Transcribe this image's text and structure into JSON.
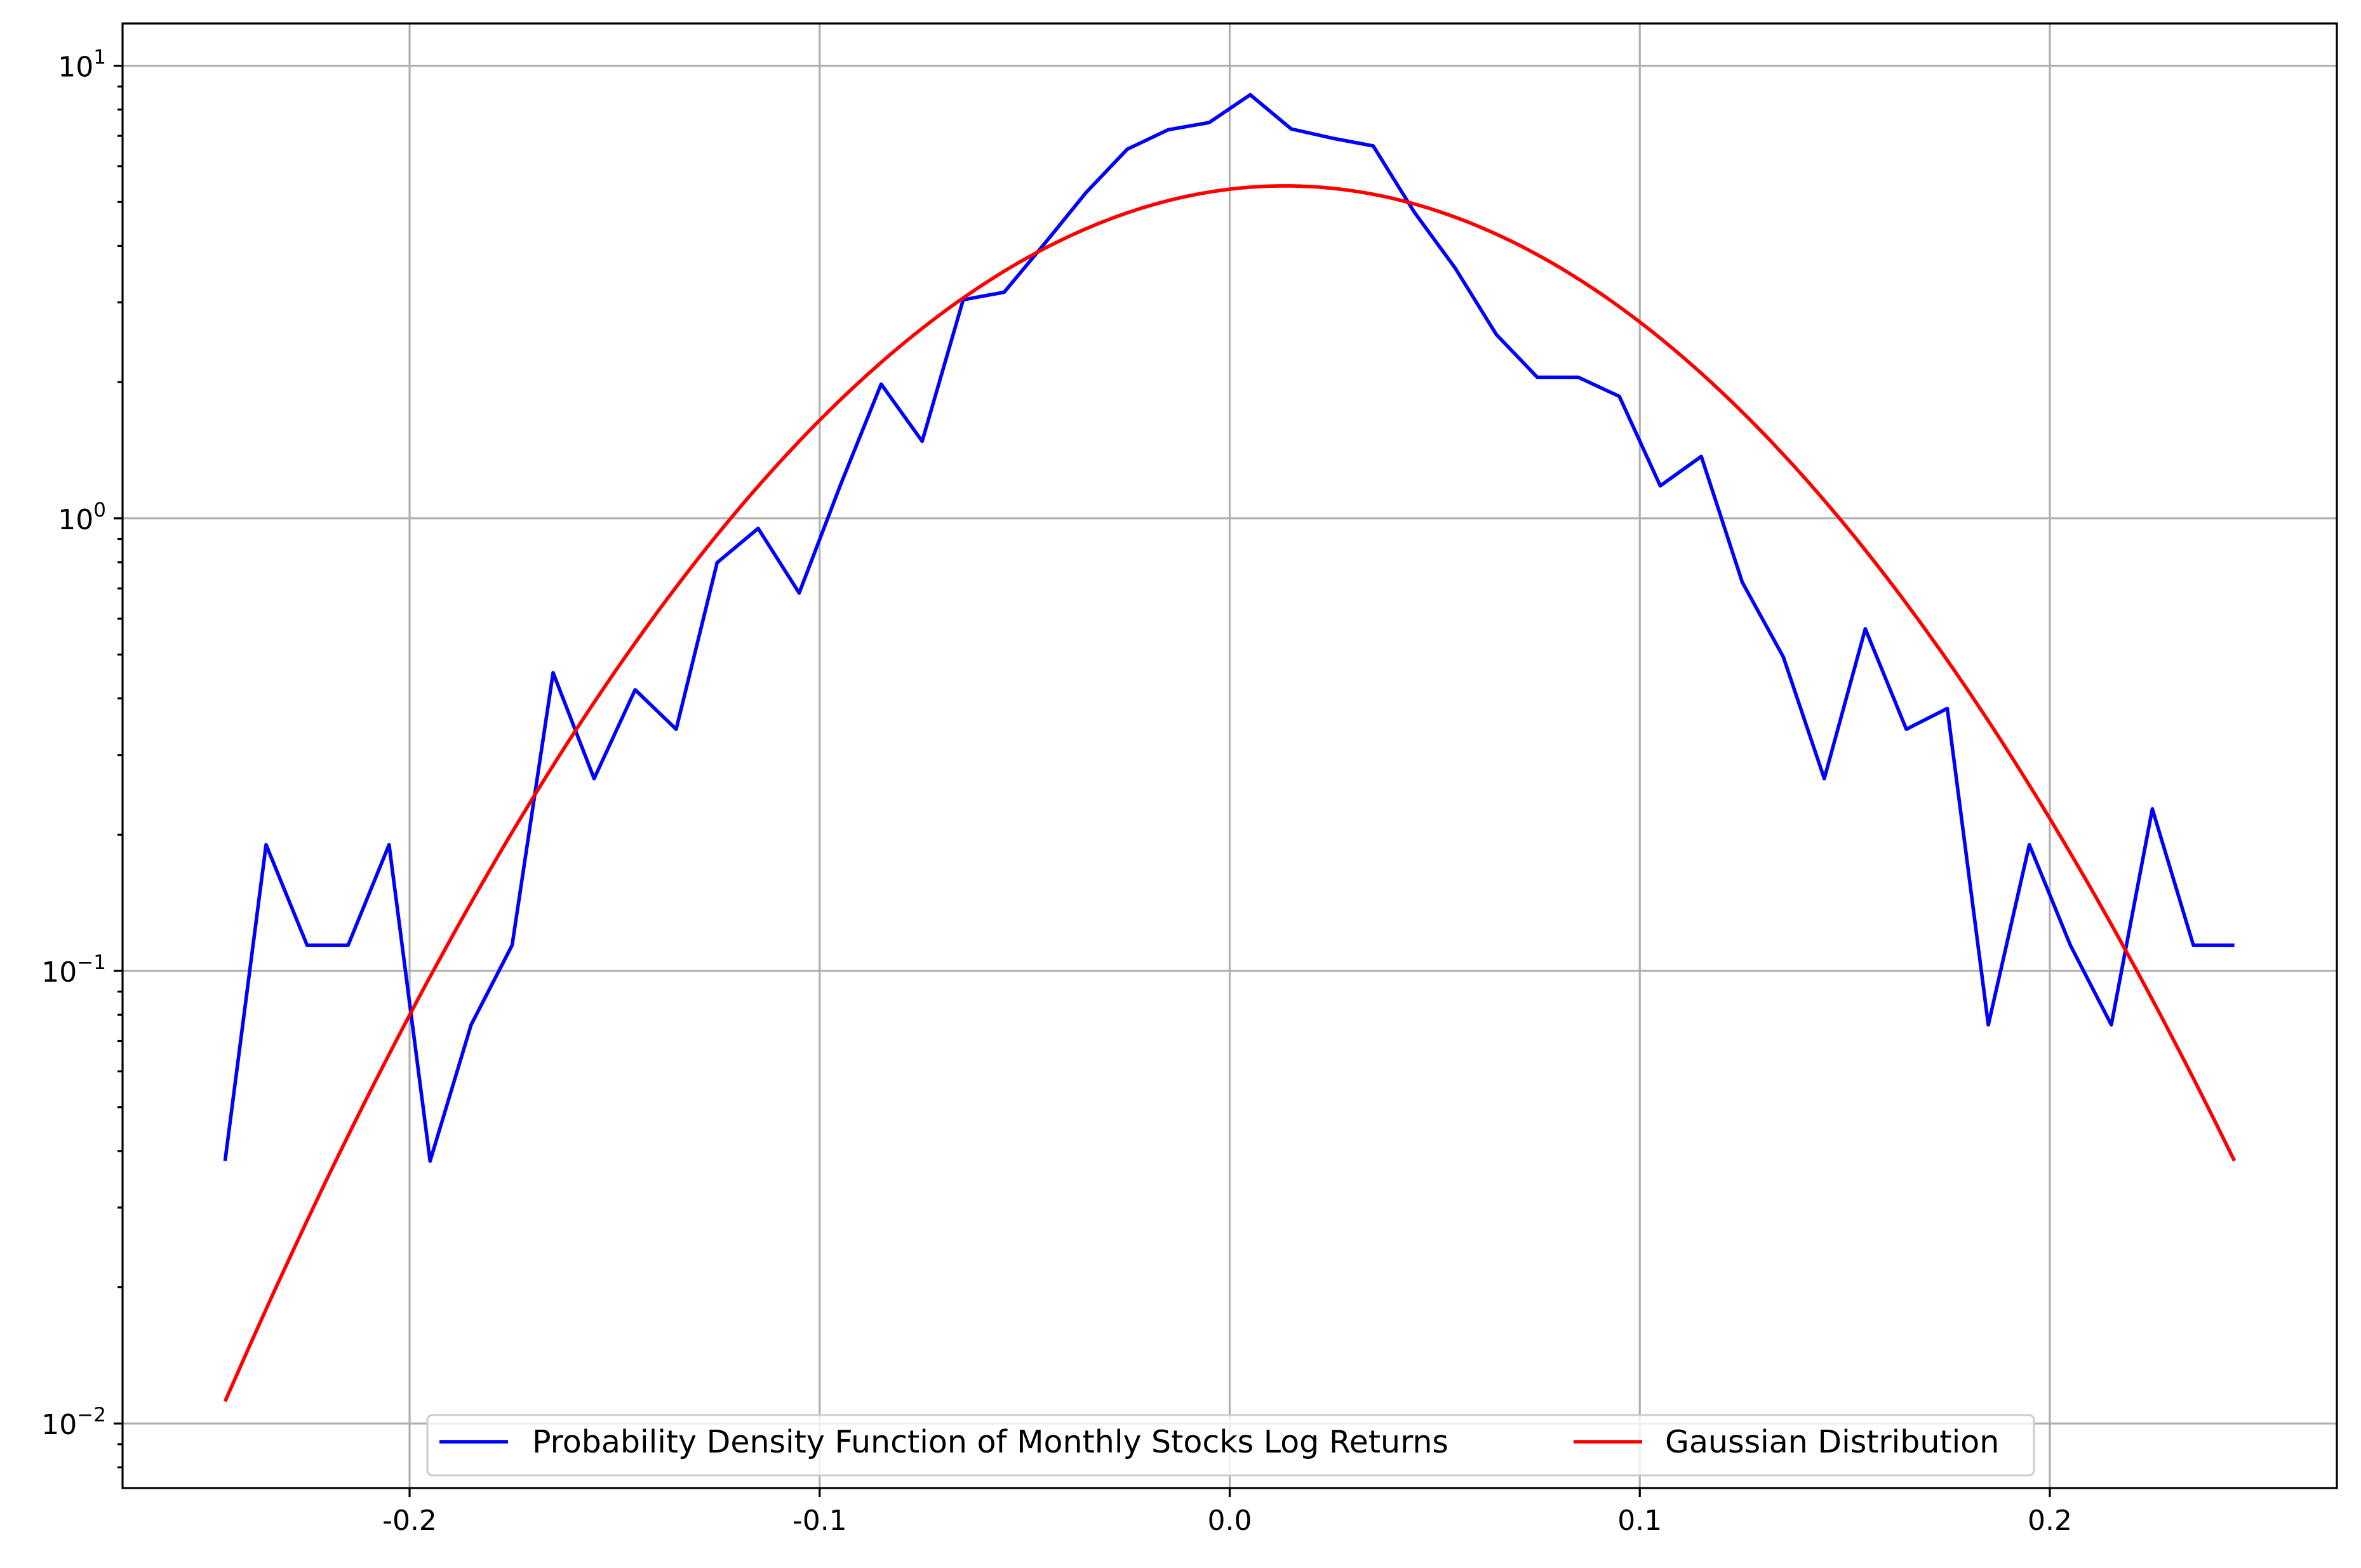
{
  "chart_data": {
    "type": "line",
    "title": "",
    "xlabel": "",
    "ylabel": "",
    "xscale": "linear",
    "yscale": "log",
    "xlim": [
      -0.27,
      0.27
    ],
    "ylim": [
      0.0072,
      12.4
    ],
    "grid": true,
    "legend_loc": "lower center",
    "legend_ncol": 2,
    "x_ticks": [
      {
        "value": -0.2,
        "label": "-0.2"
      },
      {
        "value": -0.1,
        "label": "-0.1"
      },
      {
        "value": 0.0,
        "label": "0.0"
      },
      {
        "value": 0.1,
        "label": "0.1"
      },
      {
        "value": 0.2,
        "label": "0.2"
      }
    ],
    "y_ticks": [
      {
        "value": 10,
        "base": "10",
        "exp": "1"
      },
      {
        "value": 1,
        "base": "10",
        "exp": "0"
      },
      {
        "value": 0.1,
        "base": "10",
        "exp": "−1"
      },
      {
        "value": 0.01,
        "base": "10",
        "exp": "−2"
      }
    ],
    "series": [
      {
        "name": "Probability Density Function of Monthly Stocks Log Returns",
        "color": "#0000ff",
        "x": [
          -0.245,
          -0.235,
          -0.225,
          -0.215,
          -0.205,
          -0.195,
          -0.185,
          -0.175,
          -0.165,
          -0.155,
          -0.145,
          -0.135,
          -0.125,
          -0.115,
          -0.105,
          -0.095,
          -0.085,
          -0.075,
          -0.065,
          -0.055,
          -0.045,
          -0.035,
          -0.025,
          -0.015,
          -0.005,
          0.005,
          0.015,
          0.025,
          0.035,
          0.045,
          0.055,
          0.065,
          0.075,
          0.085,
          0.095,
          0.105,
          0.115,
          0.125,
          0.135,
          0.145,
          0.155,
          0.165,
          0.175,
          0.185,
          0.195,
          0.205,
          0.215,
          0.225,
          0.235,
          0.245
        ],
        "y": [
          0.038,
          0.19,
          0.114,
          0.114,
          0.19,
          0.038,
          0.076,
          0.114,
          0.456,
          0.266,
          0.418,
          0.342,
          0.798,
          0.95,
          0.684,
          1.18,
          1.98,
          1.48,
          3.04,
          3.16,
          4.06,
          5.25,
          6.54,
          7.22,
          7.49,
          8.63,
          7.25,
          6.92,
          6.65,
          4.75,
          3.57,
          2.55,
          2.05,
          2.05,
          1.86,
          1.18,
          1.37,
          0.722,
          0.494,
          0.266,
          0.57,
          0.342,
          0.38,
          0.076,
          0.19,
          0.114,
          0.076,
          0.228,
          0.114,
          0.114
        ]
      },
      {
        "name": "Gaussian Distribution",
        "color": "#ff0000",
        "model": {
          "form": "normal_pdf",
          "mean": 0.0135,
          "sd": 0.0735
        },
        "x_range": [
          -0.245,
          0.245
        ]
      }
    ]
  }
}
